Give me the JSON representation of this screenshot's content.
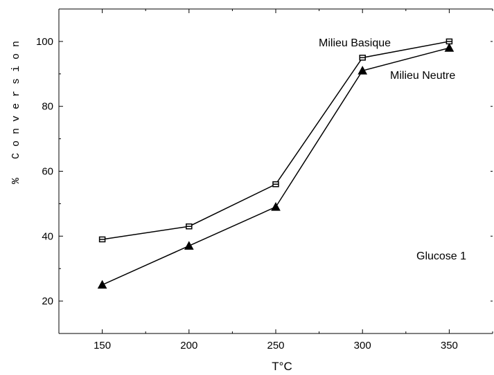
{
  "chart_data": {
    "type": "line",
    "xlabel": "T°C",
    "ylabel": "% Conversion",
    "x": [
      150,
      200,
      250,
      300,
      350
    ],
    "xlim": [
      125,
      375
    ],
    "ylim": [
      10,
      110
    ],
    "xticks": [
      150,
      200,
      250,
      300,
      350
    ],
    "yticks": [
      20,
      40,
      60,
      80,
      100
    ],
    "grid": false,
    "series": [
      {
        "name": "Milieu Basique",
        "values": [
          39,
          43,
          56,
          95,
          100
        ],
        "marker": "square"
      },
      {
        "name": "Milieu Neutre",
        "values": [
          25,
          37,
          49,
          91,
          98
        ],
        "marker": "triangle"
      }
    ],
    "annotations": [
      "Milieu Basique",
      "Milieu Neutre",
      "Glucose 1"
    ],
    "colors": {
      "line": "#000000",
      "background": "#ffffff"
    }
  }
}
